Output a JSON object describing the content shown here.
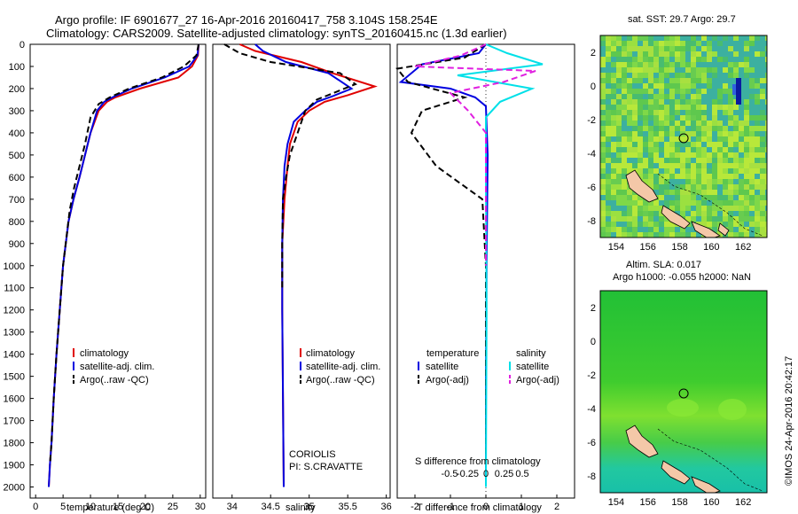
{
  "header": {
    "line1": "Argo profile: IF 6901677_27 16-Apr-2016 20160417_758 3.104S 158.254E",
    "line2": "Climatology: CARS2009. Satellite-adjusted climatology: synTS_20160415.nc (1.3d earlier)"
  },
  "colors": {
    "climatology": "#e00000",
    "satellite": "#0000e0",
    "argo": "#000000",
    "satellite_s": "#00e0e8",
    "argo_s": "#e020e0"
  },
  "chart_data": [
    {
      "type": "line",
      "title": "temperature profile",
      "xlabel": "temperature (deg C)",
      "ylabel": "",
      "xlim": [
        -1,
        31
      ],
      "ylim": [
        2050,
        0
      ],
      "xticks": [
        "0",
        "5",
        "10",
        "15",
        "20",
        "25",
        "30"
      ],
      "xtick_values": [
        0,
        5,
        10,
        15,
        20,
        25,
        30
      ],
      "yticks": [
        "0",
        "100",
        "200",
        "300",
        "400",
        "500",
        "600",
        "700",
        "800",
        "900",
        "1000",
        "1100",
        "1200",
        "1300",
        "1400",
        "1500",
        "1600",
        "1700",
        "1800",
        "1900",
        "2000"
      ],
      "ytick_values": [
        0,
        100,
        200,
        300,
        400,
        500,
        600,
        700,
        800,
        900,
        1000,
        1100,
        1200,
        1300,
        1400,
        1500,
        1600,
        1700,
        1800,
        1900,
        2000
      ],
      "legend": [
        "climatology",
        "satellite-adj. clim.",
        "Argo(..raw -QC)"
      ],
      "legend_position": "lower-right",
      "series": [
        {
          "name": "climatology",
          "color": "#e00000",
          "x": [
            29.7,
            29.6,
            28.5,
            26.0,
            19.0,
            14.5,
            13.0,
            11.5,
            10.0,
            9.0,
            8.0,
            6.9,
            6.0,
            5.0,
            4.4,
            3.8,
            3.3,
            2.9,
            2.6,
            2.4
          ],
          "y": [
            0,
            50,
            100,
            150,
            200,
            240,
            260,
            300,
            400,
            500,
            600,
            700,
            800,
            1000,
            1200,
            1400,
            1600,
            1800,
            1900,
            2000
          ]
        },
        {
          "name": "satellite-adj. clim.",
          "color": "#0000e0",
          "x": [
            29.7,
            29.5,
            28.0,
            23.5,
            17.5,
            14.0,
            12.5,
            11.2,
            10.0,
            9.0,
            8.0,
            6.9,
            6.0,
            5.0,
            4.4,
            3.8,
            3.3,
            2.9,
            2.6,
            2.4
          ],
          "y": [
            0,
            50,
            100,
            150,
            200,
            240,
            260,
            300,
            400,
            500,
            600,
            700,
            800,
            1000,
            1200,
            1400,
            1600,
            1800,
            1900,
            2000
          ]
        },
        {
          "name": "Argo(..raw -QC)",
          "color": "#000000",
          "x": [
            29.7,
            29.3,
            27.0,
            23.0,
            17.0,
            13.5,
            11.5,
            10.0,
            9.0,
            8.0,
            7.0,
            6.2,
            5.0,
            4.4,
            3.8,
            3.3,
            2.9,
            2.6
          ],
          "y": [
            0,
            50,
            100,
            150,
            200,
            240,
            270,
            330,
            450,
            550,
            650,
            750,
            1000,
            1200,
            1400,
            1600,
            1800,
            1900
          ]
        }
      ]
    },
    {
      "type": "line",
      "title": "salinity profile",
      "xlabel": "salinity",
      "xlim": [
        33.75,
        36.05
      ],
      "ylim": [
        2050,
        0
      ],
      "xticks": [
        "34",
        "34.5",
        "35",
        "35.5",
        "36"
      ],
      "xtick_values": [
        34,
        34.5,
        35,
        35.5,
        36
      ],
      "legend": [
        "climatology",
        "satellite-adj. clim.",
        "Argo(..raw -QC)"
      ],
      "legend_position": "lower-right",
      "annotations": [
        "CORIOLIS",
        "PI: S.CRAVATTE"
      ],
      "series": [
        {
          "name": "climatology",
          "color": "#e00000",
          "x": [
            34.1,
            34.3,
            34.9,
            35.3,
            35.85,
            35.5,
            35.2,
            35.0,
            34.85,
            34.75,
            34.72,
            34.68,
            34.65,
            34.65,
            34.67
          ],
          "y": [
            0,
            30,
            80,
            130,
            190,
            230,
            260,
            300,
            350,
            450,
            550,
            700,
            900,
            1200,
            2000
          ]
        },
        {
          "name": "satellite-adj. clim.",
          "color": "#0000e0",
          "x": [
            34.3,
            34.4,
            34.7,
            35.25,
            35.55,
            35.3,
            35.1,
            34.95,
            34.8,
            34.72,
            34.68,
            34.66,
            34.65,
            34.65,
            34.67
          ],
          "y": [
            0,
            30,
            80,
            130,
            200,
            235,
            260,
            300,
            350,
            450,
            550,
            700,
            900,
            1200,
            2000
          ]
        },
        {
          "name": "Argo(..raw -QC)",
          "color": "#000000",
          "x": [
            33.9,
            34.1,
            34.5,
            35.4,
            35.6,
            35.1,
            34.95,
            34.85,
            34.75,
            34.7,
            34.66,
            34.65,
            34.65
          ],
          "y": [
            0,
            40,
            80,
            130,
            180,
            250,
            300,
            400,
            500,
            600,
            700,
            900,
            1100
          ]
        }
      ]
    },
    {
      "type": "line",
      "title": "difference from climatology",
      "xlabel": "T difference from climatology",
      "xlabel_top": "S difference from climatology",
      "xlim": [
        -2.5,
        2.5
      ],
      "ylim": [
        2050,
        0
      ],
      "xticks": [
        "-2",
        "-1",
        "0",
        "1",
        "2"
      ],
      "xtick_values": [
        -2,
        -1,
        0,
        1,
        2
      ],
      "xticks_top": [
        "-0.5",
        "-0.25",
        "0",
        "0.25",
        "0.5"
      ],
      "xtick_top_values": [
        -0.5,
        -0.25,
        0,
        0.25,
        0.5
      ],
      "legend_title_t": "temperature",
      "legend_title_s": "salinity",
      "legend": [
        "satellite",
        "Argo(-adj)",
        "satellite",
        "Argo(-adj)"
      ],
      "legend_position": "lower-right",
      "series": [
        {
          "name": "satellite",
          "group": "temperature",
          "color": "#0000e0",
          "x": [
            0,
            -0.2,
            -1.8,
            -2.4,
            -1.0,
            -0.3,
            0,
            0.05,
            0.02,
            0,
            0
          ],
          "y": [
            0,
            40,
            90,
            170,
            200,
            240,
            280,
            500,
            1000,
            1500,
            2000
          ]
        },
        {
          "name": "Argo(-adj)",
          "group": "temperature",
          "color": "#000000",
          "x": [
            0,
            -0.6,
            -2.5,
            -2.2,
            -0.6,
            -1.8,
            -2.1,
            -1.4,
            -0.1,
            0,
            0
          ],
          "y": [
            0,
            60,
            110,
            170,
            240,
            300,
            400,
            550,
            700,
            1000,
            1900
          ]
        },
        {
          "name": "satellite",
          "group": "salinity",
          "color": "#00e0e8",
          "x": [
            0,
            0.6,
            1.6,
            -0.8,
            1.3,
            0.4,
            0,
            0,
            0.02,
            0
          ],
          "y": [
            0,
            40,
            90,
            140,
            200,
            260,
            330,
            600,
            1200,
            2000
          ]
        },
        {
          "name": "Argo(-adj)",
          "group": "salinity",
          "color": "#e020e0",
          "x": [
            0,
            -0.7,
            -2.0,
            1.4,
            0.5,
            -1.0,
            -0.5,
            0,
            0,
            0
          ],
          "y": [
            0,
            50,
            100,
            120,
            170,
            220,
            300,
            400,
            600,
            1000
          ]
        }
      ]
    },
    {
      "type": "heatmap",
      "title": "sat. SST: 29.7 Argo: 29.7",
      "xticks": [
        "154",
        "156",
        "158",
        "160",
        "162"
      ],
      "xtick_values": [
        154,
        156,
        158,
        160,
        162
      ],
      "yticks": [
        "2",
        "0",
        "-2",
        "-4",
        "-6",
        "-8"
      ],
      "ytick_values": [
        2,
        0,
        -2,
        -4,
        -6,
        -8
      ],
      "xlim": [
        153,
        163.5
      ],
      "ylim": [
        -9,
        3
      ],
      "marker": {
        "lon": 158.254,
        "lat": -3.104
      }
    },
    {
      "type": "heatmap",
      "title": "Altim. SLA: 0.017",
      "subtitle": "Argo h1000: -0.055 h2000: NaN",
      "xticks": [
        "154",
        "156",
        "158",
        "160",
        "162"
      ],
      "xtick_values": [
        154,
        156,
        158,
        160,
        162
      ],
      "yticks": [
        "2",
        "0",
        "-2",
        "-4",
        "-6",
        "-8"
      ],
      "ytick_values": [
        2,
        0,
        -2,
        -4,
        -6,
        -8
      ],
      "xlim": [
        153,
        163.5
      ],
      "ylim": [
        -9,
        3
      ],
      "marker": {
        "lon": 158.254,
        "lat": -3.104
      }
    }
  ],
  "footer": {
    "stamp": "©IMOS 24-Apr-2016 20:42:17"
  }
}
